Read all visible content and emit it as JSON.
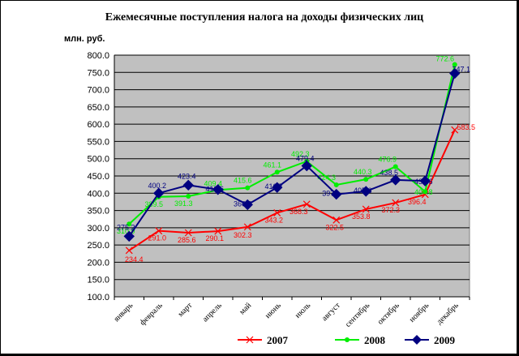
{
  "chart_data": {
    "type": "line",
    "title": "Ежемесячные поступления налога на доходы физических лиц",
    "ylabel": "млн. руб.",
    "xlabel": "",
    "ylim": [
      100,
      800
    ],
    "ytick_step": 50,
    "ytick_labels": [
      "100.0",
      "150.0",
      "200.0",
      "250.0",
      "300.0",
      "350.0",
      "400.0",
      "450.0",
      "500.0",
      "550.0",
      "600.0",
      "650.0",
      "700.0",
      "750.0",
      "800.0"
    ],
    "categories": [
      "январь",
      "февраль",
      "март",
      "апрель",
      "май",
      "июнь",
      "июль",
      "август",
      "сентябрь",
      "октябрь",
      "ноябрь",
      "декабрь"
    ],
    "grid": true,
    "legend_position": "bottom",
    "series": [
      {
        "name": "2007",
        "color": "#ff0000",
        "marker": "x",
        "values": [
          234.4,
          291.0,
          285.6,
          290.1,
          302.3,
          343.2,
          368.3,
          322.5,
          353.8,
          372.3,
          396.4,
          583.5
        ],
        "labels": [
          "234.4",
          "291.0",
          "285.6",
          "290.1",
          "302.3",
          "343.2",
          "368.3",
          "322.5",
          "353.8",
          "372.3",
          "396.4",
          "583.5"
        ]
      },
      {
        "name": "2008",
        "color": "#00ee00",
        "marker": "dot",
        "values": [
          310.9,
          389.5,
          391.3,
          409.4,
          415.6,
          461.1,
          492.3,
          424.3,
          440.3,
          476.9,
          404.8,
          772.6
        ],
        "labels": [
          "310.9",
          "389.5",
          "391.3",
          "409.4",
          "415.6",
          "461.1",
          "492.3",
          "424.3",
          "440.3",
          "476.9",
          "404.8",
          "772.6"
        ]
      },
      {
        "name": "2009",
        "color": "#000080",
        "marker": "diamond",
        "values": [
          275.2,
          400.2,
          423.4,
          410.6,
          366.8,
          416.7,
          479.4,
          397,
          405.6,
          438.5,
          435.6,
          747.1
        ],
        "labels": [
          "275.2",
          "400.2",
          "423.4",
          "410.6",
          "366.8",
          "416.7",
          "479.4",
          "397",
          "405.6",
          "438.5",
          "435.6",
          "747.1"
        ]
      }
    ]
  }
}
